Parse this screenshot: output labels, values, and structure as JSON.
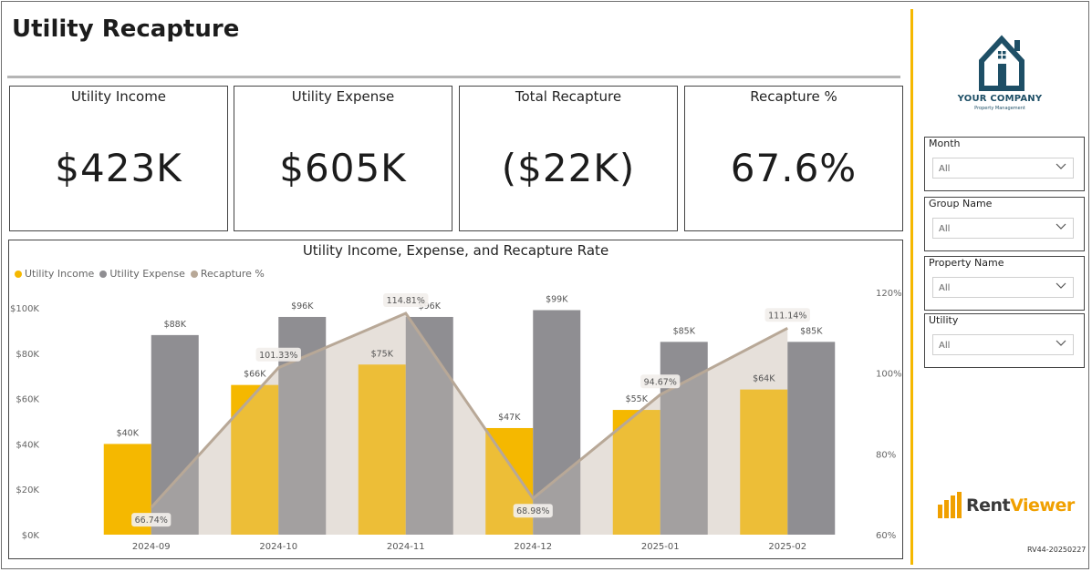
{
  "page": {
    "title": "Utility Recapture"
  },
  "kpis": [
    {
      "label": "Utility Income",
      "value": "$423K"
    },
    {
      "label": "Utility Expense",
      "value": "$605K"
    },
    {
      "label": "Total Recapture",
      "value": "($22K)"
    },
    {
      "label": "Recapture %",
      "value": "67.6%"
    }
  ],
  "chart_data": {
    "type": "bar",
    "title": "Utility Income, Expense, and Recapture Rate",
    "categories": [
      "2024-09",
      "2024-10",
      "2024-11",
      "2024-12",
      "2025-01",
      "2025-02"
    ],
    "series": [
      {
        "name": "Utility Income",
        "axis": "left",
        "mark": "bar",
        "values": [
          40,
          66,
          75,
          47,
          55,
          64
        ],
        "labels": [
          "$40K",
          "$66K",
          "$75K",
          "$47K",
          "$55K",
          "$64K"
        ],
        "color": "#f5b800"
      },
      {
        "name": "Utility Expense",
        "axis": "left",
        "mark": "bar",
        "values": [
          88,
          96,
          96,
          99,
          85,
          85
        ],
        "labels": [
          "$88K",
          "$96K",
          "$96K",
          "$99K",
          "$85K",
          "$85K"
        ],
        "color": "#8f8e92"
      },
      {
        "name": "Recapture %",
        "axis": "right",
        "mark": "line-area",
        "values": [
          66.74,
          101.33,
          114.81,
          68.98,
          94.67,
          111.14
        ],
        "labels": [
          "66.74%",
          "101.33%",
          "114.81%",
          "68.98%",
          "94.67%",
          "111.14%"
        ],
        "color": "#b8a897"
      }
    ],
    "y_left": {
      "ticks": [
        "$0K",
        "$20K",
        "$40K",
        "$60K",
        "$80K",
        "$100K"
      ],
      "ylim": [
        0,
        100
      ]
    },
    "y_right": {
      "ticks": [
        "60%",
        "80%",
        "100%",
        "120%"
      ],
      "ylim": [
        60,
        120
      ]
    },
    "legend_position": "top-left",
    "grid": false
  },
  "branding": {
    "company_name": "YOUR COMPANY",
    "company_sub": "Property Management",
    "product_name_a": "Rent",
    "product_name_b": "Viewer",
    "version": "RV44-20250227"
  },
  "filters": [
    {
      "label": "Month",
      "value": "All"
    },
    {
      "label": "Group Name",
      "value": "All"
    },
    {
      "label": "Property Name",
      "value": "All"
    },
    {
      "label": "Utility",
      "value": "All"
    }
  ],
  "colors": {
    "accent": "#f5b800",
    "expense": "#8f8e92",
    "recapture": "#b8a897",
    "brand_blue": "#1e4f66"
  }
}
